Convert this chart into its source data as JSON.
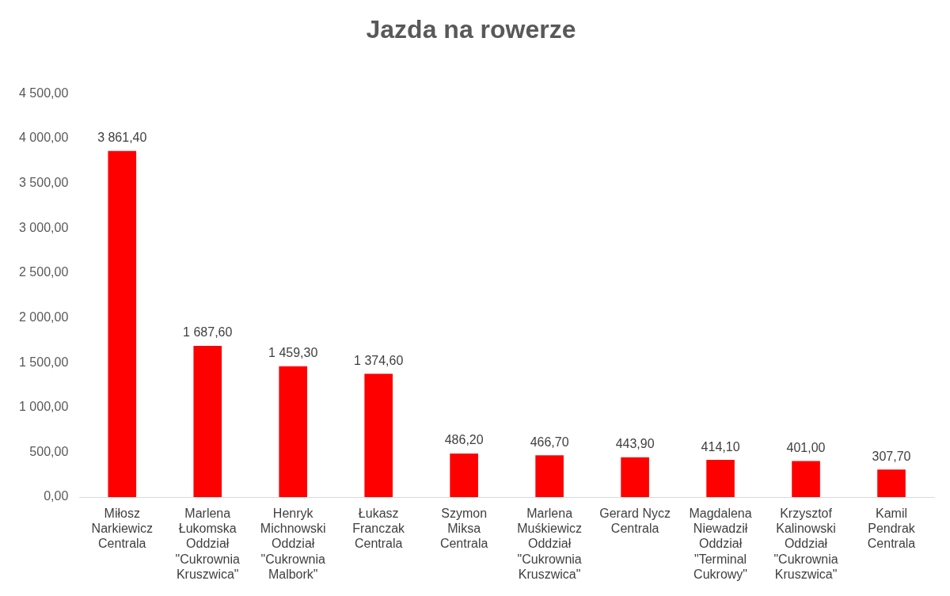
{
  "chart_data": {
    "type": "bar",
    "title": "Jazda na rowerze",
    "categories": [
      "Miłosz Narkiewicz Centrala",
      "Marlena Łukomska Oddział \"Cukrownia Kruszwica\"",
      "Henryk Michnowski Oddział \"Cukrownia Malbork\"",
      "Łukasz Franczak Centrala",
      "Szymon Miksa Centrala",
      "Marlena Muśkiewicz Oddział \"Cukrownia Kruszwica\"",
      "Gerard Nycz Centrala",
      "Magdalena Niewadził Oddział \"Terminal Cukrowy\"",
      "Krzysztof Kalinowski Oddział \"Cukrownia Kruszwica\"",
      "Kamil Pendrak Centrala"
    ],
    "values": [
      3861.4,
      1687.6,
      1459.3,
      1374.6,
      486.2,
      466.7,
      443.9,
      414.1,
      401.0,
      307.7
    ],
    "value_labels": [
      "3 861,40",
      "1 687,60",
      "1 459,30",
      "1 374,60",
      "486,20",
      "466,70",
      "443,90",
      "414,10",
      "401,00",
      "307,70"
    ],
    "color": "#ff0000",
    "ylim": [
      0,
      4500
    ],
    "yticks": [
      {
        "value": 0,
        "label": "0,00"
      },
      {
        "value": 500,
        "label": "500,00"
      },
      {
        "value": 1000,
        "label": "1 000,00"
      },
      {
        "value": 1500,
        "label": "1 500,00"
      },
      {
        "value": 2000,
        "label": "2 000,00"
      },
      {
        "value": 2500,
        "label": "2 500,00"
      },
      {
        "value": 3000,
        "label": "3 000,00"
      },
      {
        "value": 3500,
        "label": "3 500,00"
      },
      {
        "value": 4000,
        "label": "4 000,00"
      },
      {
        "value": 4500,
        "label": "4 500,00"
      }
    ],
    "grid": false,
    "legend": false
  }
}
